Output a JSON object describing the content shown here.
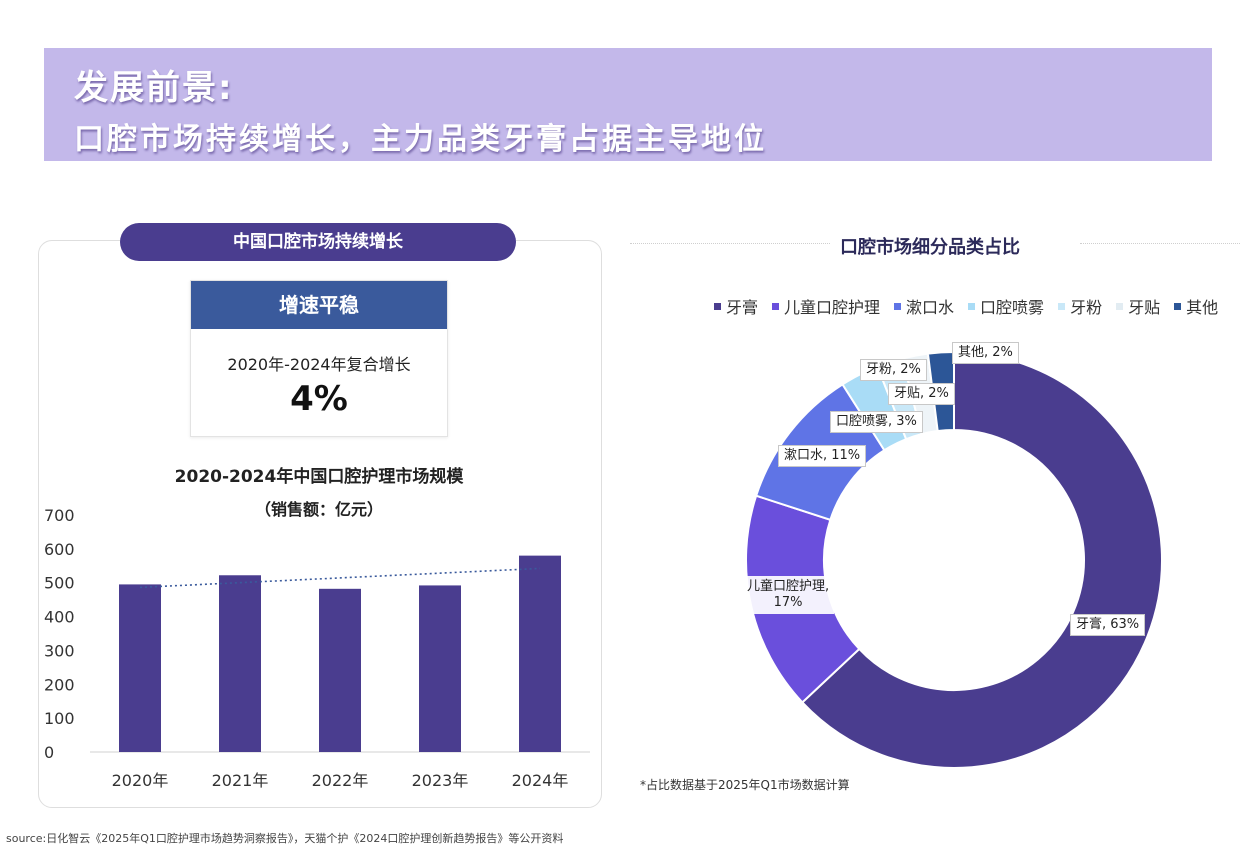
{
  "header": {
    "line1": "发展前景:",
    "line2": "口腔市场持续增长，主力品类牙膏占据主导地位"
  },
  "left_panel": {
    "pill_title": "中国口腔市场持续增长",
    "card": {
      "heading": "增速平稳",
      "subtitle": "2020年-2024年复合增长",
      "value": "4%"
    }
  },
  "right_panel": {
    "title": "口腔市场细分品类占比",
    "note": "*占比数据基于2025年Q1市场数据计算"
  },
  "source": "source:日化智云《2025年Q1口腔护理市场趋势洞察报告》，天猫个护《2024口腔护理创新趋势报告》等公开资料",
  "chart_data": [
    {
      "type": "bar",
      "title": "2020-2024年中国口腔护理市场规模",
      "subtitle": "（销售额：亿元）",
      "categories": [
        "2020年",
        "2021年",
        "2022年",
        "2023年",
        "2024年"
      ],
      "values": [
        495,
        522,
        482,
        492,
        580
      ],
      "ylim": [
        0,
        700
      ],
      "yticks": [
        0,
        100,
        200,
        300,
        400,
        500,
        600,
        700
      ],
      "trendline": "dotted linear",
      "grid": false,
      "color": "#4a3d8f"
    },
    {
      "type": "pie",
      "donut": true,
      "slices": [
        {
          "name": "牙膏",
          "value": 63,
          "label": "牙膏, 63%",
          "color": "#4a3d8f"
        },
        {
          "name": "儿童口腔护理",
          "value": 17,
          "label": "儿童口腔护理, 17%",
          "label_line1": "儿童口腔护理,",
          "label_line2": "17%",
          "color": "#6a4fdc"
        },
        {
          "name": "漱口水",
          "value": 11,
          "label": "漱口水, 11%",
          "color": "#5f74e6"
        },
        {
          "name": "口腔喷雾",
          "value": 3,
          "label": "口腔喷雾, 3%",
          "color": "#a9dcf6"
        },
        {
          "name": "牙粉",
          "value": 2,
          "label": "牙粉, 2%",
          "color": "#c9e8f8"
        },
        {
          "name": "牙贴",
          "value": 2,
          "label": "牙贴, 2%",
          "color": "#eef4f8"
        },
        {
          "name": "其他",
          "value": 2,
          "label": "其他, 2%",
          "color": "#2c5697"
        }
      ],
      "legend_position": "top"
    }
  ]
}
